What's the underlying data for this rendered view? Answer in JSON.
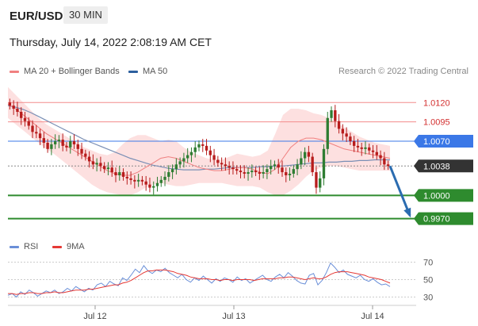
{
  "header": {
    "symbol": "EUR/USD",
    "timeframe": "30 MIN",
    "datetime": "Thursday, July 14, 2022 2:08:19 AM CET"
  },
  "legend": {
    "items": [
      {
        "label": "MA 20 + Bollinger Bands",
        "color": "#f08080"
      },
      {
        "label": "MA 50",
        "color": "#2c5f9e"
      }
    ],
    "credit": "Research © 2022 Trading Central"
  },
  "rsi_legend": {
    "items": [
      {
        "label": "RSI",
        "color": "#6a8fd8"
      },
      {
        "label": "9MA",
        "color": "#e53935"
      }
    ]
  },
  "colors": {
    "up": "#2e7d32",
    "down": "#b71c1c",
    "bollinger_fill": "#fde0e0",
    "ma20": "#f08080",
    "ma50": "#7a8fb5",
    "resistance": "#f28b8b",
    "pivot": "#3b78e7",
    "support": "#2e8b2e",
    "current": "#333333",
    "arrow": "#2b6cb0"
  },
  "chart_data": [
    {
      "type": "candlestick",
      "title": "EUR/USD 30 MIN",
      "x_tick_labels": [
        "Jul 12",
        "Jul 13",
        "Jul 14"
      ],
      "price_levels": [
        {
          "value": 1.012,
          "label": "1.0120",
          "kind": "resistance"
        },
        {
          "value": 1.0095,
          "label": "1.0095",
          "kind": "resistance"
        },
        {
          "value": 1.007,
          "label": "1.0070",
          "kind": "pivot"
        },
        {
          "value": 1.0038,
          "label": "1.0038",
          "kind": "current"
        },
        {
          "value": 1.0,
          "label": "1.0000",
          "kind": "support"
        },
        {
          "value": 0.997,
          "label": "0.9970",
          "kind": "support"
        }
      ],
      "close_series": [
        1.0116,
        1.0112,
        1.0108,
        1.01,
        1.0096,
        1.009,
        1.0082,
        1.008,
        1.0074,
        1.0068,
        1.006,
        1.0066,
        1.007,
        1.0072,
        1.0064,
        1.0062,
        1.007,
        1.0066,
        1.006,
        1.0054,
        1.005,
        1.0044,
        1.004,
        1.0042,
        1.0038,
        1.0034,
        1.0036,
        1.003,
        1.0026,
        1.003,
        1.0024,
        1.0022,
        1.002,
        1.0018,
        1.002,
        1.0018,
        1.0014,
        1.001,
        1.0012,
        1.0016,
        1.002,
        1.0024,
        1.003,
        1.0034,
        1.004,
        1.0044,
        1.0048,
        1.0052,
        1.0056,
        1.0062,
        1.0066,
        1.0064,
        1.0058,
        1.0052,
        1.0046,
        1.0042,
        1.004,
        1.0038,
        1.0036,
        1.0034,
        1.0032,
        1.003,
        1.0028,
        1.003,
        1.0032,
        1.003,
        1.0028,
        1.003,
        1.0034,
        1.0038,
        1.004,
        1.0036,
        1.003,
        1.0026,
        1.0028,
        1.0034,
        1.004,
        1.0048,
        1.0056,
        1.005,
        1.003,
        1.001,
        1.0022,
        1.006,
        1.01,
        1.011,
        1.0096,
        1.0086,
        1.008,
        1.0076,
        1.007,
        1.0064,
        1.0062,
        1.006,
        1.0062,
        1.0058,
        1.0056,
        1.0052,
        1.0048,
        1.004,
        1.0038
      ],
      "ma50_series": [
        1.0116,
        1.0114,
        1.0111,
        1.0107,
        1.0102,
        1.0097,
        1.0092,
        1.0087,
        1.0082,
        1.0077,
        1.0072,
        1.0068,
        1.0064,
        1.006,
        1.0056,
        1.0052,
        1.0048,
        1.0045,
        1.0042,
        1.0039,
        1.0037,
        1.0035,
        1.0034,
        1.0033,
        1.0033,
        1.0033,
        1.0034,
        1.0034,
        1.0035,
        1.0036,
        1.0036,
        1.0036,
        1.0036,
        1.0037,
        1.0037,
        1.0038,
        1.0038,
        1.0039,
        1.004,
        1.0041,
        1.0042,
        1.0042,
        1.0043,
        1.0043,
        1.0044,
        1.0044,
        1.0045,
        1.0045,
        1.0046,
        1.0046,
        1.0046
      ],
      "ma20_series": [
        1.0118,
        1.0112,
        1.0104,
        1.0096,
        1.0088,
        1.008,
        1.0074,
        1.0068,
        1.0062,
        1.0056,
        1.005,
        1.0044,
        1.0038,
        1.0032,
        1.0028,
        1.0026,
        1.0026,
        1.003,
        1.0036,
        1.0042,
        1.0048,
        1.005,
        1.0048,
        1.0044,
        1.004,
        1.0036,
        1.0034,
        1.0032,
        1.0032,
        1.0034,
        1.0036,
        1.0036,
        1.0034,
        1.003,
        1.0028,
        1.0034,
        1.0048,
        1.0062,
        1.007,
        1.0074,
        1.0074,
        1.0072,
        1.0068,
        1.0064,
        1.006,
        1.0058,
        1.0056,
        1.0054,
        1.0052,
        1.005,
        1.0048
      ],
      "bb_upper_series": [
        1.014,
        1.013,
        1.012,
        1.011,
        1.01,
        1.0092,
        1.0086,
        1.008,
        1.0074,
        1.0068,
        1.0062,
        1.0058,
        1.0054,
        1.0052,
        1.0056,
        1.0066,
        1.0074,
        1.0078,
        1.0078,
        1.0074,
        1.007,
        1.0072,
        1.007,
        1.0062,
        1.0056,
        1.0052,
        1.0048,
        1.0046,
        1.0046,
        1.005,
        1.0054,
        1.0052,
        1.005,
        1.0052,
        1.0058,
        1.008,
        1.0104,
        1.0112,
        1.0112,
        1.011,
        1.0106,
        1.0104,
        1.01,
        1.0094,
        1.0088,
        1.0082,
        1.0076,
        1.0072,
        1.0068,
        1.0066,
        1.0064
      ],
      "bb_lower_series": [
        1.01,
        1.0092,
        1.0084,
        1.0076,
        1.0068,
        1.006,
        1.0054,
        1.0046,
        1.0038,
        1.003,
        1.0022,
        1.0014,
        1.0008,
        1.0004,
        1.0002,
        1.0,
        1.0,
        1.0004,
        1.001,
        1.0014,
        1.0016,
        1.0014,
        1.0012,
        1.0012,
        1.0014,
        1.0016,
        1.0016,
        1.0016,
        1.0016,
        1.0014,
        1.0012,
        1.0012,
        1.0012,
        1.001,
        1.0004,
        1.0,
        1.0,
        1.0006,
        1.0014,
        1.0024,
        1.0032,
        1.0036,
        1.0038,
        1.0038,
        1.0036,
        1.0034,
        1.0032,
        1.0032,
        1.0032,
        1.0032,
        1.0032
      ],
      "projection": {
        "from": 1.0038,
        "to": 0.997
      },
      "legend": [
        "MA 20 + Bollinger Bands",
        "MA 50"
      ]
    },
    {
      "type": "line",
      "title": "RSI",
      "y_tick_labels": [
        "70",
        "50",
        "30"
      ],
      "y_ticks": [
        70,
        50,
        30
      ],
      "ylim": [
        25,
        75
      ],
      "series": [
        {
          "name": "RSI",
          "values": [
            32,
            34,
            30,
            36,
            33,
            38,
            35,
            31,
            34,
            37,
            35,
            38,
            34,
            36,
            40,
            37,
            42,
            39,
            36,
            40,
            38,
            44,
            46,
            42,
            48,
            45,
            43,
            52,
            49,
            55,
            62,
            58,
            66,
            60,
            57,
            61,
            59,
            63,
            58,
            55,
            52,
            56,
            50,
            47,
            52,
            49,
            54,
            50,
            46,
            51,
            48,
            52,
            50,
            47,
            53,
            49,
            51,
            46,
            49,
            52,
            55,
            50,
            48,
            53,
            56,
            52,
            58,
            54,
            49,
            46,
            45,
            55,
            57,
            44,
            49,
            58,
            69,
            64,
            58,
            61,
            56,
            54,
            52,
            55,
            50,
            48,
            51,
            47,
            44,
            45,
            42
          ]
        },
        {
          "name": "9MA",
          "values": [
            34,
            34,
            33,
            34,
            34,
            35,
            35,
            34,
            34,
            35,
            35,
            36,
            35,
            35,
            36,
            37,
            38,
            38,
            38,
            39,
            39,
            40,
            41,
            42,
            43,
            44,
            44,
            46,
            47,
            49,
            52,
            55,
            58,
            60,
            60,
            61,
            61,
            61,
            60,
            59,
            57,
            56,
            55,
            53,
            52,
            51,
            51,
            51,
            50,
            50,
            49,
            50,
            50,
            49,
            50,
            50,
            50,
            50,
            49,
            50,
            51,
            51,
            51,
            51,
            52,
            52,
            53,
            53,
            52,
            51,
            50,
            51,
            52,
            51,
            51,
            53,
            56,
            58,
            59,
            59,
            59,
            58,
            57,
            56,
            55,
            53,
            52,
            51,
            50,
            48,
            46
          ]
        }
      ],
      "legend": [
        "RSI",
        "9MA"
      ]
    }
  ]
}
